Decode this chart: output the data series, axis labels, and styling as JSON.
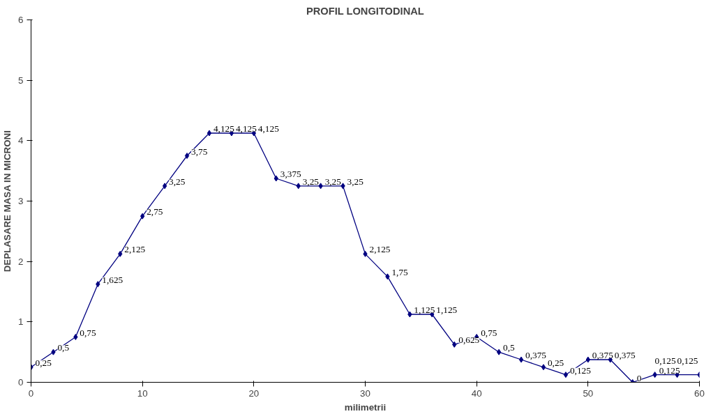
{
  "chart_data": {
    "type": "line",
    "title": "PROFIL LONGITODINAL",
    "xlabel": "milimetrii",
    "ylabel": "DEPLASARE MASA IN MICRONI",
    "x": [
      0,
      2,
      4,
      6,
      8,
      10,
      12,
      14,
      16,
      18,
      20,
      22,
      24,
      26,
      28,
      30,
      32,
      34,
      36,
      38,
      40,
      42,
      44,
      46,
      48,
      50,
      52,
      54,
      56,
      58,
      60
    ],
    "series": [
      {
        "color": "#000080",
        "values": [
          0.25,
          0.5,
          0.75,
          1.625,
          2.125,
          2.75,
          3.25,
          3.75,
          4.125,
          4.125,
          4.125,
          3.375,
          3.25,
          3.25,
          3.25,
          2.125,
          1.75,
          1.125,
          1.125,
          0.625,
          0.75,
          0.5,
          0.375,
          0.25,
          0.125,
          0.375,
          0.375,
          0,
          0.125,
          0.125,
          0.125
        ],
        "value_labels": [
          "0,25",
          "0,5",
          "0,75",
          "1,625",
          "2,125",
          "2,75",
          "3,25",
          "3,75",
          "4,125",
          "4,125",
          "4,125",
          "3,375",
          "3,25",
          "3,25",
          "3,25",
          "2,125",
          "1,75",
          "1,125",
          "1,125",
          "0,625",
          "0,75",
          "0,5",
          "0,375",
          "0,25",
          "0,125",
          "0,375",
          "0,375",
          "0",
          "0,125",
          "0,125",
          "0,125"
        ]
      }
    ],
    "xlim": [
      0,
      60
    ],
    "xticks": [
      0,
      10,
      20,
      30,
      40,
      50,
      60
    ],
    "ylim": [
      0,
      6
    ],
    "yticks": [
      0,
      1,
      2,
      3,
      4,
      5,
      6
    ],
    "marker": "diamond",
    "line_style": "solid",
    "grid": false
  }
}
